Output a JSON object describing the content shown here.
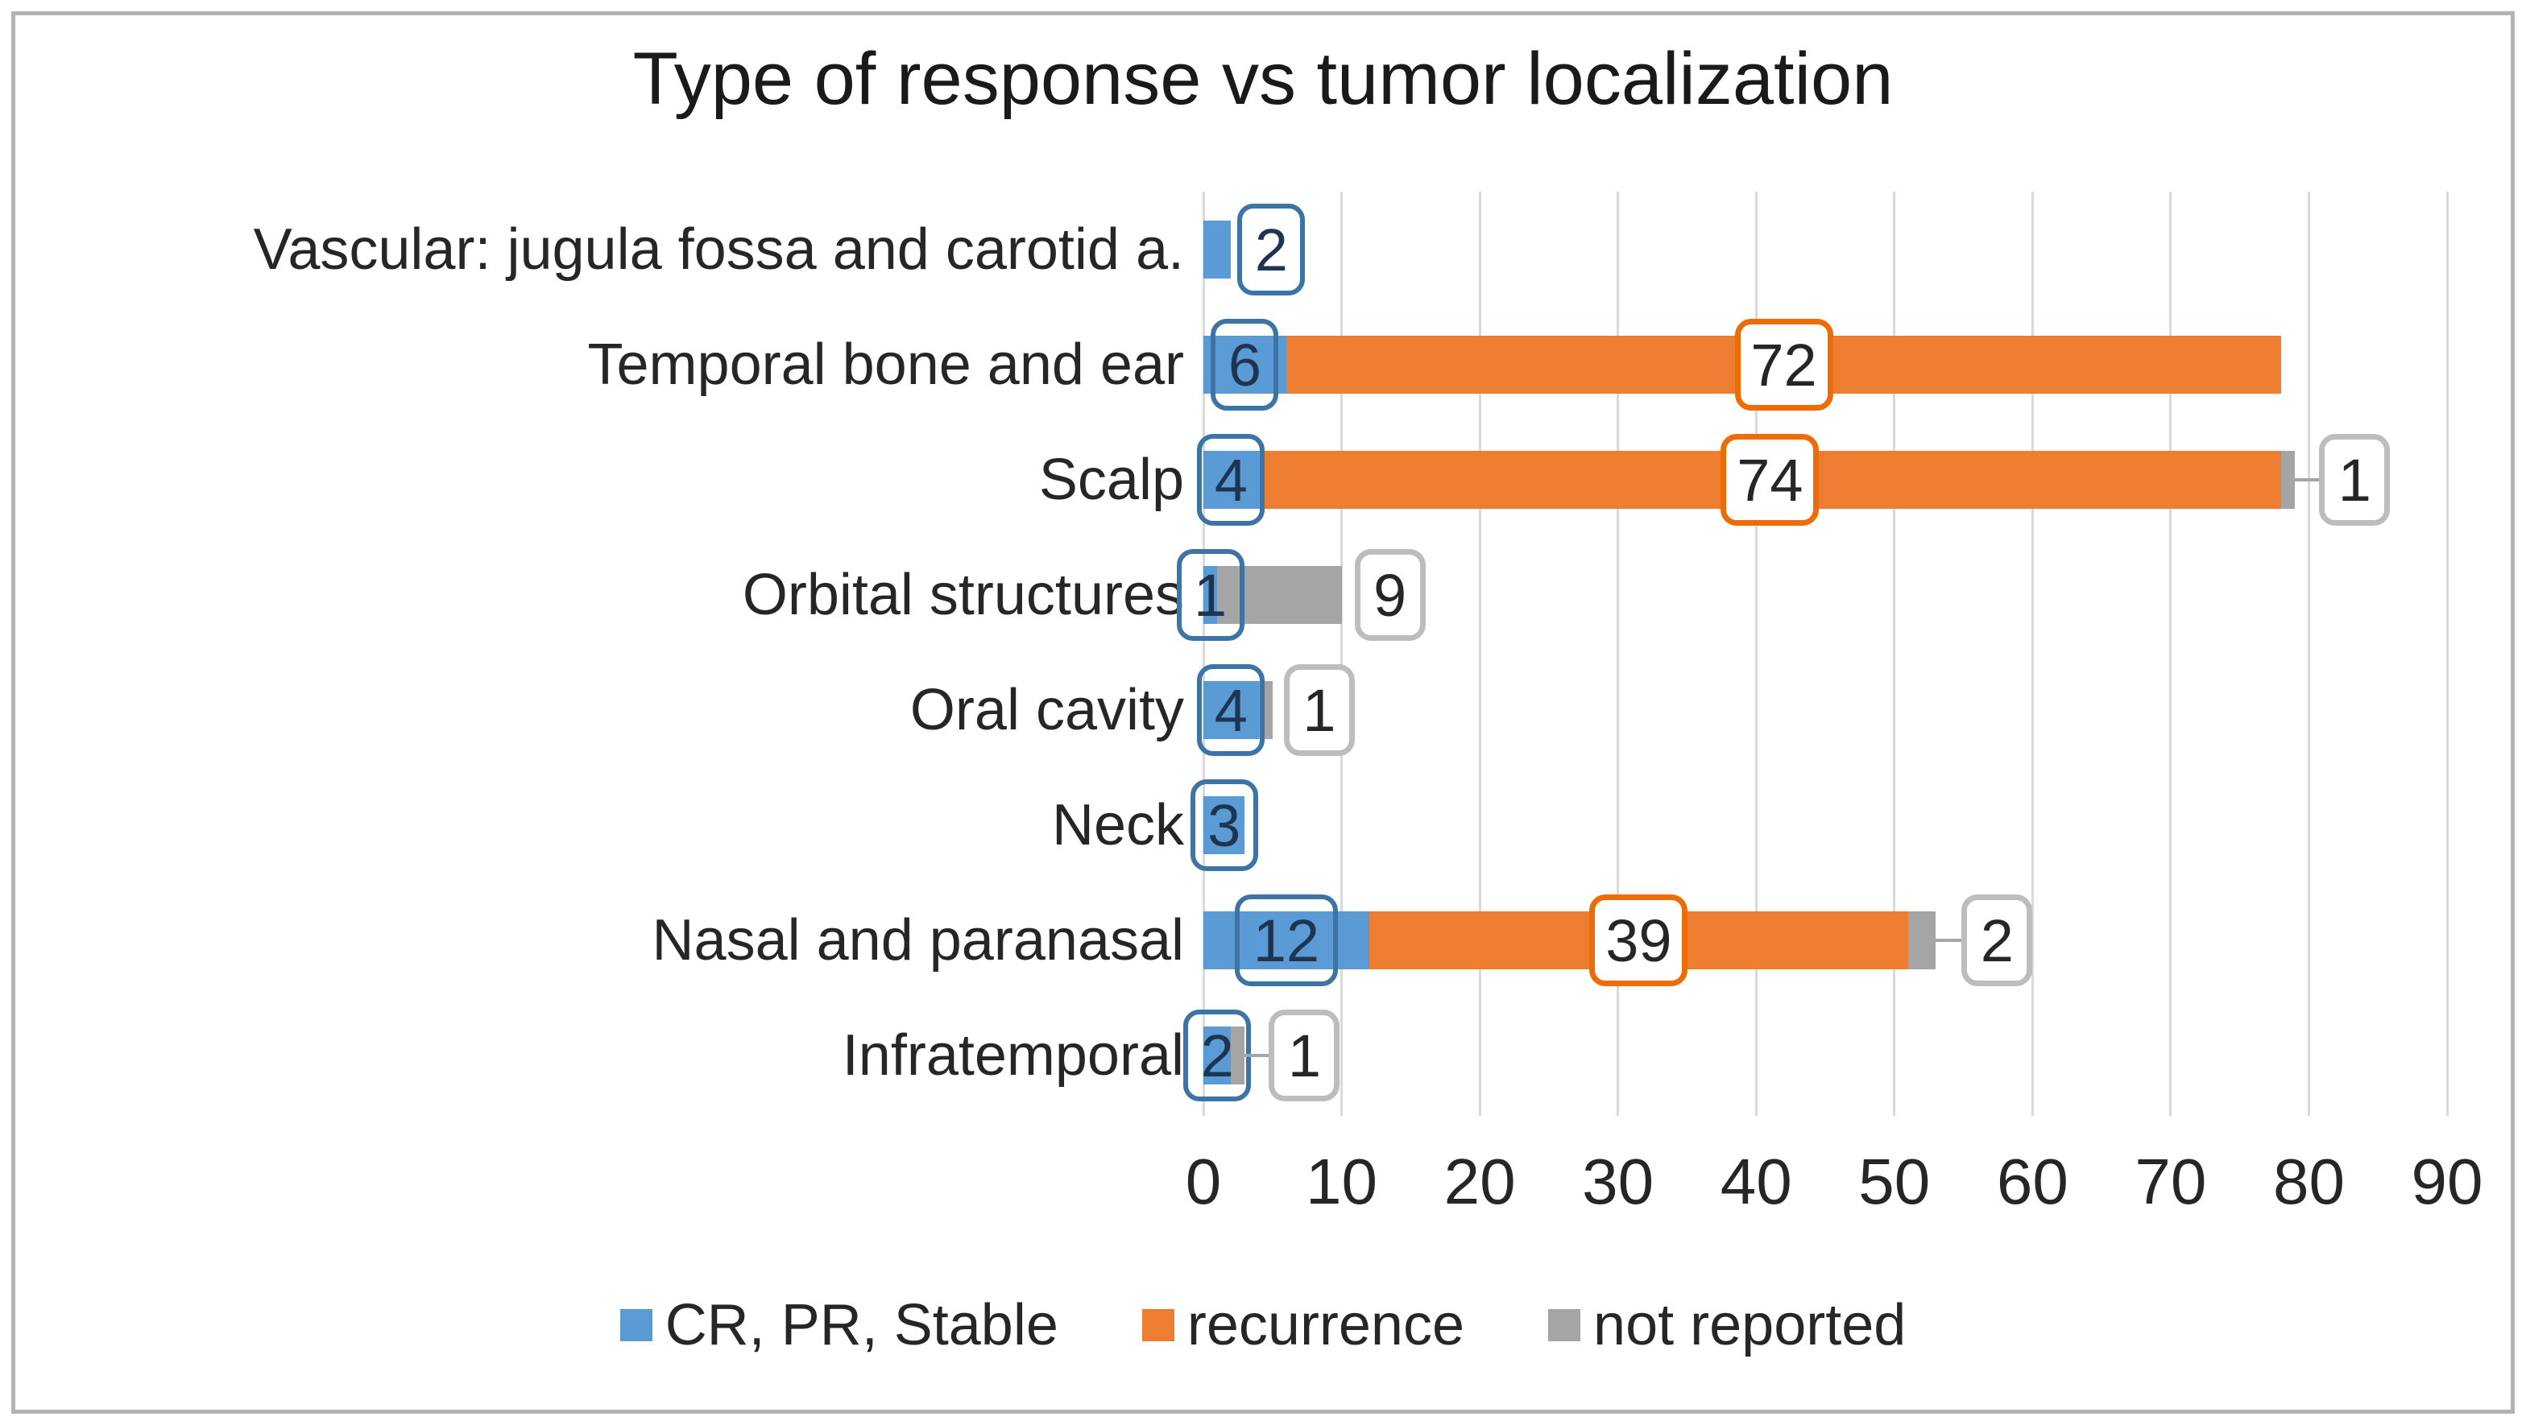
{
  "title": "Type of response vs tumor localization",
  "chart_data": {
    "type": "bar",
    "orientation": "horizontal",
    "stacked": true,
    "title": "Type of response vs tumor localization",
    "xlabel": "",
    "ylabel": "",
    "xlim": [
      0,
      90
    ],
    "x_ticks": [
      0,
      10,
      20,
      30,
      40,
      50,
      60,
      70,
      80,
      90
    ],
    "grid": "vertical",
    "legend_position": "bottom",
    "categories": [
      "Vascular: jugula fossa and carotid a.",
      "Temporal bone and ear",
      "Scalp",
      "Orbital structures",
      "Oral cavity",
      "Neck",
      "Nasal and paranasal",
      "Infratemporal"
    ],
    "series": [
      {
        "name": "CR, PR, Stable",
        "color": "#5B9BD5",
        "values": [
          2,
          6,
          4,
          1,
          4,
          3,
          12,
          2
        ]
      },
      {
        "name": "recurrence",
        "color": "#ED7D31",
        "values": [
          0,
          72,
          74,
          0,
          0,
          0,
          39,
          0
        ]
      },
      {
        "name": "not reported",
        "color": "#A5A5A5",
        "values": [
          0,
          0,
          1,
          9,
          1,
          0,
          2,
          1
        ]
      }
    ],
    "data_labels_shown": [
      "2",
      "6",
      "72",
      "4",
      "74",
      "1",
      "1",
      "9",
      "4",
      "1",
      "3",
      "12",
      "39",
      "2",
      "2",
      "1"
    ]
  },
  "colors": {
    "gridline": "#D9D9D9",
    "frame_border": "#B3B3B3",
    "title_text": "#1A1A1A",
    "axis_text": "#262626",
    "category_text": "#262626",
    "callout_border_blue": "#3C74A6",
    "callout_border_orange": "#ED6C05",
    "callout_border_gray": "#BDBDBD",
    "callout_text_blue": "#1E3450",
    "callout_text_dark": "#262626",
    "leader_line": "#A6A6A6"
  }
}
